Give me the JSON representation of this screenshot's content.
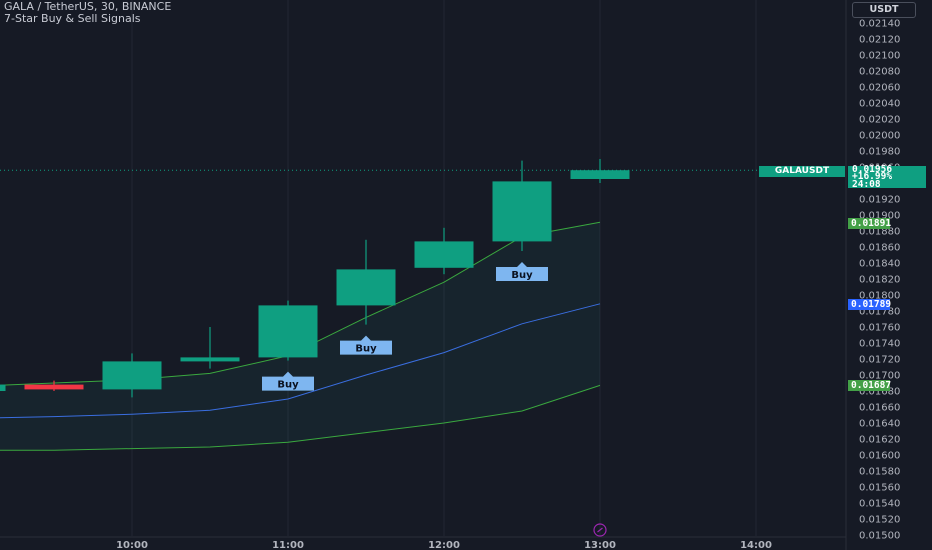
{
  "header": {
    "title": "GALA / TetherUS, 30, BINANCE",
    "indicator": "7-Star Buy & Sell Signals"
  },
  "currency_button": "USDT",
  "colors": {
    "background": "#161a25",
    "up": "#0f9f81",
    "down": "#f23645",
    "mid_line": "#3a6ee0",
    "band_line": "#3aa83f",
    "signal": "#7eb6f0"
  },
  "price_scale": {
    "labels": [
      "0.02140",
      "0.02120",
      "0.02100",
      "0.02080",
      "0.02060",
      "0.02040",
      "0.02020",
      "0.02000",
      "0.01980",
      "0.01960",
      "0.01940",
      "0.01920",
      "0.01900",
      "0.01880",
      "0.01860",
      "0.01840",
      "0.01820",
      "0.01800",
      "0.01780",
      "0.01760",
      "0.01740",
      "0.01720",
      "0.01700",
      "0.01680",
      "0.01660",
      "0.01640",
      "0.01620",
      "0.01600",
      "0.01580",
      "0.01560",
      "0.01540",
      "0.01520",
      "0.01500"
    ]
  },
  "time_scale": {
    "labels": [
      "10:00",
      "11:00",
      "12:00",
      "13:00",
      "14:00"
    ]
  },
  "tags": {
    "symbol": "GALAUSDT",
    "live_price": "0.01956",
    "live_change": "+16.99%",
    "countdown": "24:08",
    "upper_band": "0.01891",
    "mid_line": "0.01789",
    "lower_band": "0.01687"
  },
  "chart_data": {
    "type": "candlestick",
    "title": "GALA / TetherUS, 30, BINANCE",
    "timeframe": "30",
    "yrange": [
      0.015,
      0.02155
    ],
    "candles": [
      {
        "time": "09:00",
        "open": 0.0168,
        "high": 0.01689,
        "low": 0.01678,
        "close": 0.01688
      },
      {
        "time": "09:30",
        "open": 0.01688,
        "high": 0.01693,
        "low": 0.0168,
        "close": 0.01682
      },
      {
        "time": "10:00",
        "open": 0.01682,
        "high": 0.01727,
        "low": 0.01672,
        "close": 0.01717
      },
      {
        "time": "10:30",
        "open": 0.01717,
        "high": 0.0176,
        "low": 0.01708,
        "close": 0.01722
      },
      {
        "time": "11:00",
        "open": 0.01722,
        "high": 0.01793,
        "low": 0.01718,
        "close": 0.01787
      },
      {
        "time": "11:30",
        "open": 0.01787,
        "high": 0.01869,
        "low": 0.01763,
        "close": 0.01832
      },
      {
        "time": "12:00",
        "open": 0.01834,
        "high": 0.01884,
        "low": 0.01826,
        "close": 0.01867
      },
      {
        "time": "12:30",
        "open": 0.01867,
        "high": 0.01968,
        "low": 0.01855,
        "close": 0.01942
      },
      {
        "time": "13:00",
        "open": 0.01945,
        "high": 0.0197,
        "low": 0.0194,
        "close": 0.01956
      }
    ],
    "series": [
      {
        "values": [
          0.01646,
          0.01648,
          0.01651,
          0.01656,
          0.0167,
          0.017,
          0.01728,
          0.01764,
          0.01789
        ]
      },
      {
        "values": [
          0.01606,
          0.01606,
          0.01608,
          0.0161,
          0.01616,
          0.01628,
          0.0164,
          0.01655,
          0.01687
        ]
      },
      {
        "values": [
          0.01686,
          0.0169,
          0.01694,
          0.01702,
          0.01724,
          0.01772,
          0.01816,
          0.01873,
          0.01891
        ]
      }
    ],
    "signals": [
      {
        "label": "Buy",
        "time": "11:00"
      },
      {
        "label": "Buy",
        "time": "11:30"
      },
      {
        "label": "Buy",
        "time": "12:30"
      }
    ]
  }
}
